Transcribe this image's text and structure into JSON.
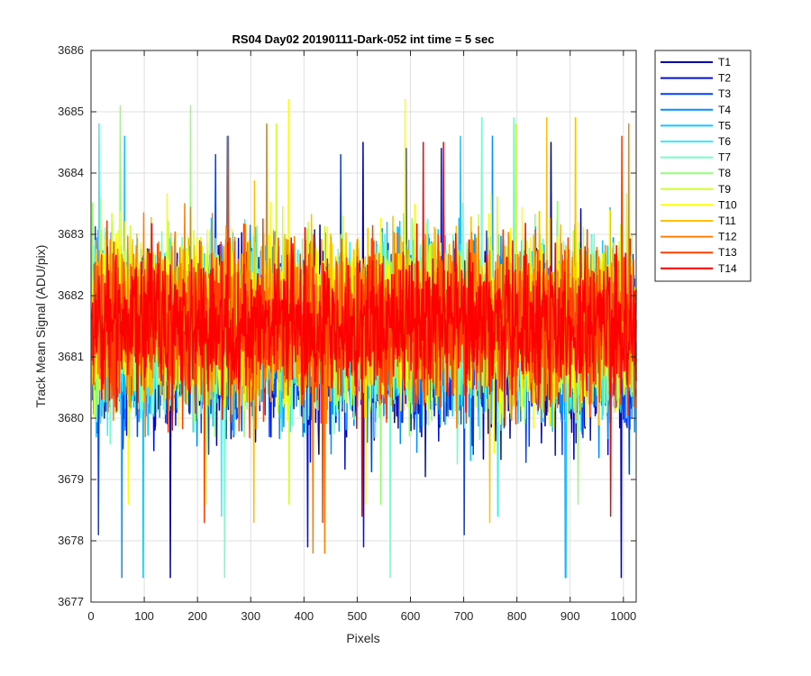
{
  "chart_data": {
    "type": "line",
    "title": "RS04 Day02 20190111-Dark-052 int time = 5 sec",
    "xlabel": "Pixels",
    "ylabel": "Track Mean Signal (ADU/pix)",
    "xlim": [
      0,
      1024
    ],
    "ylim": [
      3677,
      3686
    ],
    "xticks": [
      0,
      100,
      200,
      300,
      400,
      500,
      600,
      700,
      800,
      900,
      1000
    ],
    "yticks": [
      3677,
      3678,
      3679,
      3680,
      3681,
      3682,
      3683,
      3684,
      3685,
      3686
    ],
    "grid": true,
    "legend_position": "outside-top-right",
    "series": [
      {
        "name": "T1",
        "color": "#0000a6",
        "mean": 3681.2,
        "spread": 0.95,
        "lowest": 3677.4,
        "highest": 3684.5
      },
      {
        "name": "T2",
        "color": "#0010d8",
        "mean": 3681.2,
        "spread": 0.95,
        "lowest": 3677.9,
        "highest": 3684.4
      },
      {
        "name": "T3",
        "color": "#0040ff",
        "mean": 3681.3,
        "spread": 0.95,
        "lowest": 3678.1,
        "highest": 3684.3
      },
      {
        "name": "T4",
        "color": "#0090ff",
        "mean": 3681.3,
        "spread": 0.95,
        "lowest": 3677.4,
        "highest": 3684.6
      },
      {
        "name": "T5",
        "color": "#10c8ff",
        "mean": 3681.4,
        "spread": 0.95,
        "lowest": 3677.4,
        "highest": 3684.6
      },
      {
        "name": "T6",
        "color": "#30f0ff",
        "mean": 3681.4,
        "spread": 0.95,
        "lowest": 3678.4,
        "highest": 3684.8
      },
      {
        "name": "T7",
        "color": "#70ffc8",
        "mean": 3681.5,
        "spread": 0.95,
        "lowest": 3677.4,
        "highest": 3684.9
      },
      {
        "name": "T8",
        "color": "#90ff70",
        "mean": 3681.5,
        "spread": 0.95,
        "lowest": 3678.6,
        "highest": 3685.1
      },
      {
        "name": "T9",
        "color": "#d0ff30",
        "mean": 3681.6,
        "spread": 0.95,
        "lowest": 3678.6,
        "highest": 3684.8
      },
      {
        "name": "T10",
        "color": "#ffff00",
        "mean": 3681.6,
        "spread": 0.95,
        "lowest": 3678.6,
        "highest": 3685.2
      },
      {
        "name": "T11",
        "color": "#ffc000",
        "mean": 3681.6,
        "spread": 0.9,
        "lowest": 3678.3,
        "highest": 3684.9
      },
      {
        "name": "T12",
        "color": "#ff8000",
        "mean": 3681.6,
        "spread": 0.9,
        "lowest": 3677.8,
        "highest": 3684.8
      },
      {
        "name": "T13",
        "color": "#ff4000",
        "mean": 3681.5,
        "spread": 0.85,
        "lowest": 3678.3,
        "highest": 3684.6
      },
      {
        "name": "T14",
        "color": "#ff0000",
        "mean": 3681.5,
        "spread": 0.8,
        "lowest": 3678.4,
        "highest": 3684.5
      }
    ]
  }
}
